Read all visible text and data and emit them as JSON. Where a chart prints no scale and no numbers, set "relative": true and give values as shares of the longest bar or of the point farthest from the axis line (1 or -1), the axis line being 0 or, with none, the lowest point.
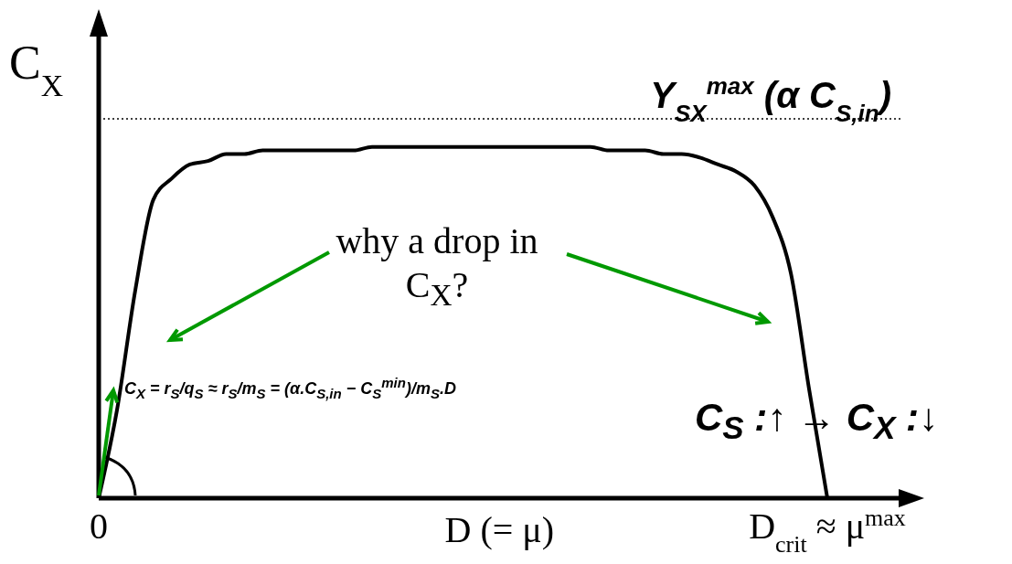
{
  "chart_data": {
    "type": "line",
    "relative": true,
    "categories": [
      "0",
      null,
      null,
      null,
      null,
      null,
      null,
      null,
      null,
      null,
      null,
      null,
      null,
      null,
      null,
      null,
      null,
      null,
      null,
      null,
      null,
      null,
      null,
      null,
      null,
      null,
      null,
      null,
      null,
      null,
      null,
      null,
      null,
      null,
      null,
      null,
      null,
      null,
      null,
      null,
      "D$_{crit}$ ≈ μ$^{max}$"
    ],
    "series": [
      {
        "color": "#000000",
        "values": [
          0,
          0.25,
          0.59,
          0.85,
          0.91,
          0.95,
          0.96,
          0.98,
          0.98,
          0.99,
          0.99,
          0.99,
          0.99,
          0.99,
          0.99,
          1,
          1,
          1,
          1,
          1,
          1,
          1,
          1,
          1,
          1,
          1,
          1,
          1,
          0.99,
          0.99,
          0.99,
          0.98,
          0.98,
          0.97,
          0.95,
          0.93,
          0.89,
          0.8,
          0.64,
          0.31,
          0
        ]
      }
    ],
    "xlabel": "D (= μ)",
    "ylabel": "C$_{X}$",
    "ref_lines": [
      {
        "axis": "y",
        "value": 1.08,
        "label": "Y$_{SX}$$^{max}$ (α C$_{S,in}$)",
        "line_style": "dotted"
      }
    ],
    "annotations": [
      "why a drop in C$_{X}$?",
      "C$_{X}$ = r$_{S}$/q$_{S}$ ≈ r$_{S}$/m$_{S}$ = (α.C$_{S,in}$ − C$_{S}$$^{min}$)/m$_{S}$.D",
      "C$_{S}$ :↑ → C$_{X}$ :↓"
    ],
    "marker": "none",
    "line_style": "solid"
  }
}
